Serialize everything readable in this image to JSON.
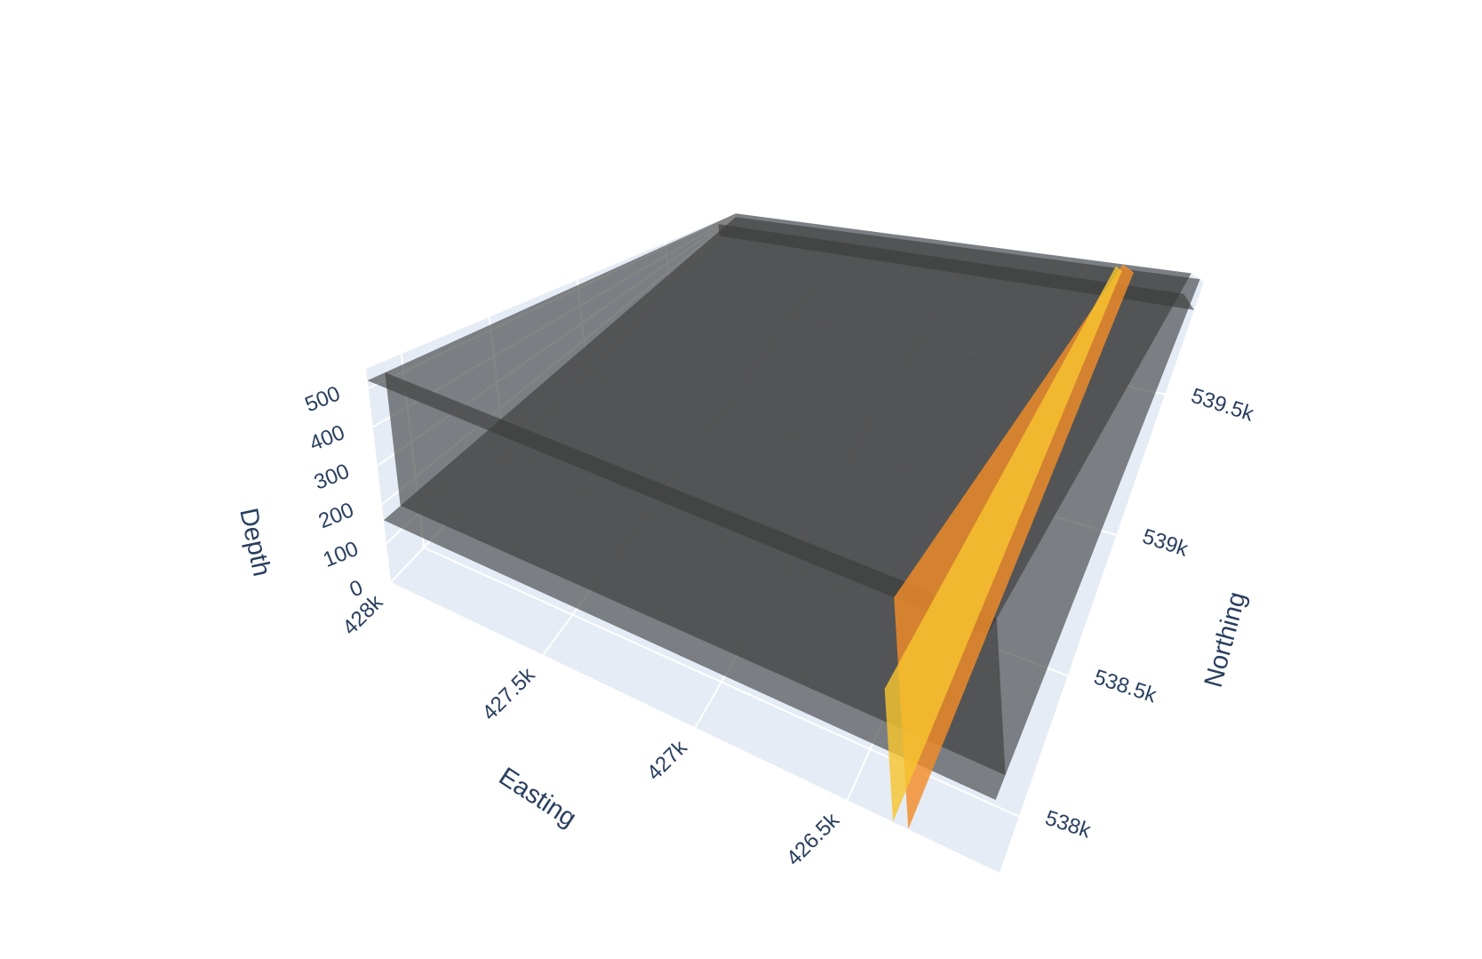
{
  "chart_data": {
    "type": "surface3d",
    "colors": {
      "pane": "#e5ecf6",
      "grid": "#ffffff",
      "surface_gray": "#3a3a3a",
      "surface_orange": "#f28c28",
      "surface_yellow": "#f7c430",
      "text": "#2a3f5f"
    },
    "axes": {
      "x": {
        "title": "Easting",
        "ticks": [
          "428k",
          "427.5k",
          "427k",
          "426.5k"
        ],
        "range": [
          426000,
          428000
        ]
      },
      "y": {
        "title": "Northing",
        "ticks": [
          "538k",
          "538.5k",
          "539k",
          "539.5k"
        ],
        "range": [
          537800,
          539900
        ]
      },
      "z": {
        "title": "Depth",
        "ticks": [
          "0",
          "100",
          "200",
          "300",
          "400",
          "500"
        ],
        "range": [
          0,
          550
        ]
      }
    },
    "surfaces": [
      {
        "kind": "horizontal",
        "depth": 520,
        "color": "gray"
      },
      {
        "kind": "horizontal",
        "depth": 160,
        "color": "gray"
      },
      {
        "kind": "vertical-northing",
        "northing": 537900,
        "depth_range": [
          160,
          520
        ],
        "color": "gray"
      },
      {
        "kind": "vertical-northing",
        "northing": 539800,
        "depth_range": [
          0,
          430
        ],
        "color": "gray"
      },
      {
        "kind": "vertical-easting",
        "easting": 426300,
        "depth_range": [
          0,
          520
        ],
        "color": "orange"
      },
      {
        "kind": "vertical-easting",
        "easting": 426350,
        "depth_range": [
          0,
          300
        ],
        "color": "yellow"
      }
    ]
  }
}
